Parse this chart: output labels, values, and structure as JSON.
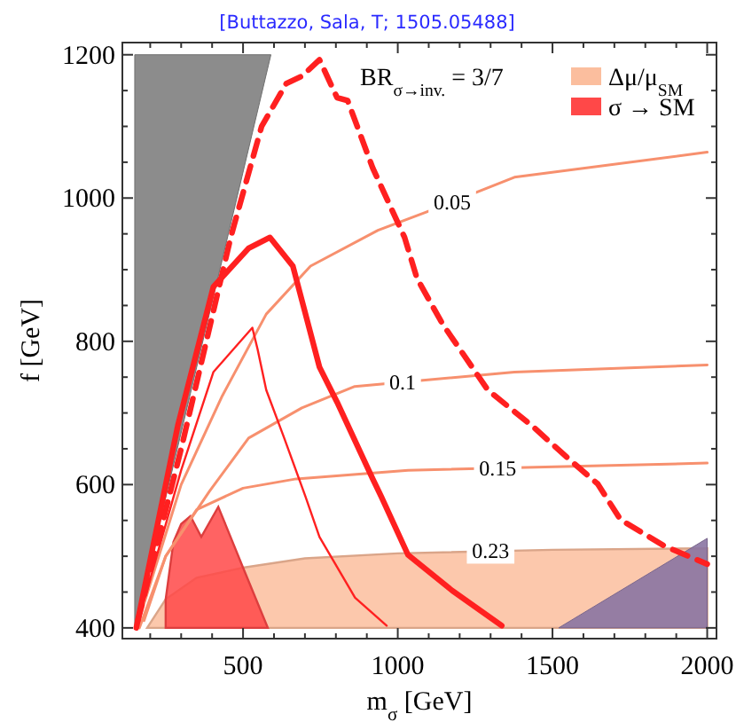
{
  "chart_data": {
    "type": "line",
    "title": "[Buttazzo, Sala, T; 1505.05488]",
    "xlabel": "m$_{σ}$  [GeV]",
    "ylabel": "f  [GeV]",
    "annotations": [
      "BR$_{σ→inv.}$ = 3/7",
      {
        "text": "0.23",
        "x": 1300,
        "y": 507
      }
    ],
    "xlim": [
      110,
      2030
    ],
    "ylim": [
      385,
      1217
    ],
    "xticks": [
      {
        "value": 200,
        "label": null
      },
      {
        "value": 300,
        "label": null
      },
      {
        "value": 400,
        "label": null
      },
      500,
      {
        "value": 600,
        "label": null
      },
      {
        "value": 700,
        "label": null
      },
      {
        "value": 800,
        "label": null
      },
      {
        "value": 900,
        "label": null
      },
      1000,
      {
        "value": 1100,
        "label": null
      },
      {
        "value": 1200,
        "label": null
      },
      {
        "value": 1300,
        "label": null
      },
      {
        "value": 1400,
        "label": null
      },
      1500,
      {
        "value": 1600,
        "label": null
      },
      {
        "value": 1700,
        "label": null
      },
      {
        "value": 1800,
        "label": null
      },
      {
        "value": 1900,
        "label": null
      },
      2000
    ],
    "yticks": [
      400,
      {
        "value": 450,
        "label": null
      },
      {
        "value": 500,
        "label": null
      },
      {
        "value": 550,
        "label": null
      },
      600,
      {
        "value": 650,
        "label": null
      },
      {
        "value": 700,
        "label": null
      },
      {
        "value": 750,
        "label": null
      },
      800,
      {
        "value": 850,
        "label": null
      },
      {
        "value": 900,
        "label": null
      },
      {
        "value": 950,
        "label": null
      },
      1000,
      {
        "value": 1050,
        "label": null
      },
      {
        "value": 1100,
        "label": null
      },
      {
        "value": 1150,
        "label": null
      },
      1200
    ],
    "legend": "top right",
    "grid": false,
    "series": [
      {
        "type": "area",
        "name": "Δμ/μ$_{SM}$",
        "color": "#fbbe9e",
        "x": [
          190,
          250,
          350,
          500,
          700,
          1000,
          1500,
          2000,
          2000
        ],
        "values": [
          400,
          440,
          470,
          484,
          497,
          504,
          509,
          511,
          400
        ]
      },
      {
        "type": "area",
        "name": "σ → SM",
        "color": "#ff4848",
        "x": [
          250,
          275,
          300,
          330,
          365,
          420,
          500,
          580,
          250
        ],
        "values": [
          440,
          520,
          545,
          556,
          527,
          569,
          484,
          400,
          400
        ]
      },
      {
        "type": "area",
        "color": "#808080",
        "x": [
          150,
          150,
          590
        ],
        "values": [
          400,
          1200,
          1200
        ]
      },
      {
        "type": "area",
        "color": "#8a74a2",
        "x": [
          1520,
          2000,
          2000
        ],
        "values": [
          400,
          400,
          525
        ]
      },
      {
        "name": "0.05",
        "color": "#f7906e",
        "x": [
          170,
          300,
          433,
          575,
          718,
          936,
          1090,
          1377,
          2000
        ],
        "values": [
          420,
          600,
          724,
          838,
          905,
          955,
          980,
          1029,
          1064
        ]
      },
      {
        "name": "0.1",
        "color": "#f7906e",
        "x": [
          165,
          250,
          392,
          518,
          690,
          861,
          1377,
          2000
        ],
        "values": [
          400,
          500,
          591,
          665,
          707,
          737,
          757,
          767
        ]
      },
      {
        "name": "0.15",
        "color": "#f7906e",
        "x": [
          180,
          250,
          350,
          500,
          672,
          1033,
          2000
        ],
        "values": [
          410,
          500,
          565,
          595,
          608,
          620,
          630
        ]
      },
      {
        "color": "#ff2020",
        "line_style": "dashed",
        "x": [
          160,
          300,
          460,
          560,
          640,
          690,
          747,
          804,
          838,
          919,
          1022,
          1062,
          1145,
          1291,
          1434,
          1560,
          1646,
          1720,
          1863,
          2000
        ],
        "values": [
          410,
          650,
          945,
          1100,
          1160,
          1170,
          1193,
          1140,
          1136,
          1042,
          945,
          888,
          824,
          732,
          682,
          633,
          601,
          551,
          514,
          489
        ]
      },
      {
        "color": "#ff2020",
        "x": [
          155,
          289,
          404,
          518,
          587,
          661,
          747,
          804,
          919,
          947,
          1033,
          1176,
          1336
        ],
        "values": [
          400,
          682,
          876,
          930,
          945,
          905,
          764,
          715,
          608,
          583,
          502,
          452,
          403
        ]
      },
      {
        "color": "#ff2020",
        "x": [
          155,
          300,
          404,
          530,
          547,
          575,
          633,
          702,
          747,
          862,
          964
        ],
        "values": [
          400,
          620,
          757,
          819,
          789,
          732,
          665,
          583,
          527,
          442,
          403
        ]
      }
    ]
  }
}
